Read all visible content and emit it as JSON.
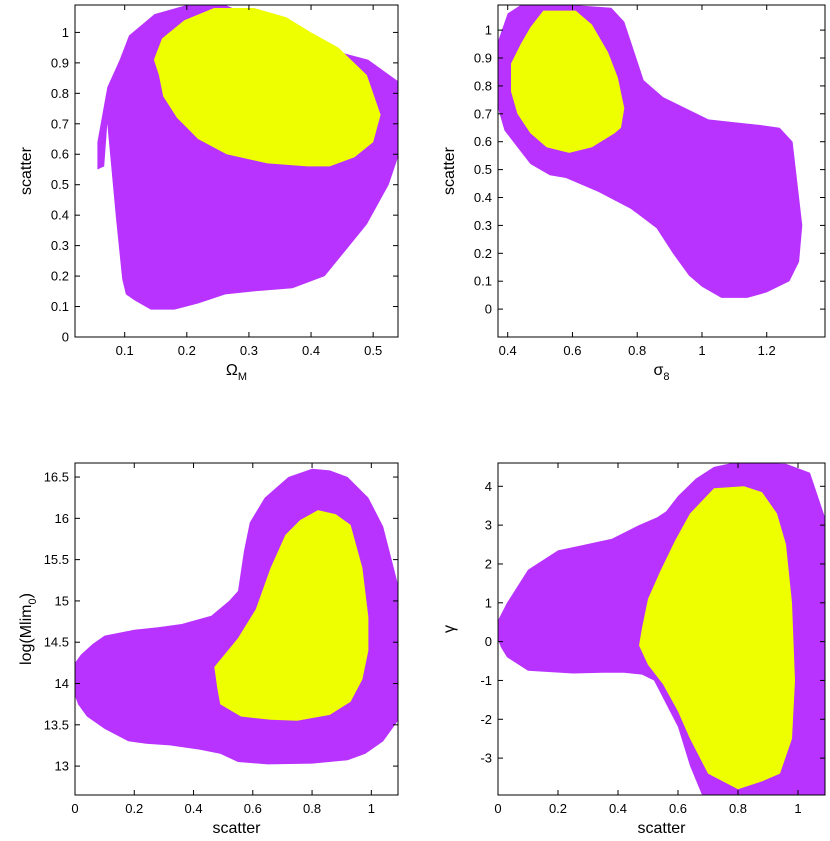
{
  "colors": {
    "outer_contour": "#B833FF",
    "inner_contour": "#EEFF00",
    "axes": "#000000",
    "background": "#FFFFFF"
  },
  "chart_data": [
    {
      "type": "contour",
      "xlabel": "Ω",
      "xlabel_sub": "M",
      "ylabel": "scatter",
      "xlim": [
        0.02,
        0.54
      ],
      "ylim": [
        0,
        1.09
      ],
      "xticks": [
        0.1,
        0.2,
        0.3,
        0.4,
        0.5
      ],
      "xtick_labels": [
        "0.1",
        "0.2",
        "0.3",
        "0.4",
        "0.5"
      ],
      "yticks": [
        0,
        0.1,
        0.2,
        0.3,
        0.4,
        0.5,
        0.6,
        0.7,
        0.8,
        0.9,
        1
      ],
      "ytick_labels": [
        "0",
        "0.1",
        "0.2",
        "0.3",
        "0.4",
        "0.5",
        "0.6",
        "0.7",
        "0.8",
        "0.9",
        "1"
      ],
      "grid": false,
      "series": [
        {
          "level": "outer",
          "x": [
            0.072,
            0.067,
            0.056,
            0.056,
            0.072,
            0.092,
            0.107,
            0.148,
            0.2,
            0.262,
            0.355,
            0.398,
            0.438,
            0.492,
            0.54,
            0.54,
            0.525,
            0.49,
            0.466,
            0.454,
            0.422,
            0.37,
            0.31,
            0.262,
            0.218,
            0.18,
            0.142,
            0.116,
            0.102,
            0.096,
            0.086
          ],
          "y": [
            0.7,
            0.56,
            0.55,
            0.64,
            0.82,
            0.91,
            0.99,
            1.06,
            1.09,
            1.09,
            1.01,
            0.99,
            0.94,
            0.91,
            0.84,
            0.59,
            0.5,
            0.37,
            0.31,
            0.28,
            0.2,
            0.16,
            0.15,
            0.14,
            0.11,
            0.09,
            0.09,
            0.12,
            0.14,
            0.19,
            0.39
          ]
        },
        {
          "level": "inner",
          "x": [
            0.147,
            0.16,
            0.196,
            0.244,
            0.308,
            0.36,
            0.4,
            0.444,
            0.49,
            0.512,
            0.5,
            0.47,
            0.43,
            0.394,
            0.33,
            0.264,
            0.218,
            0.184,
            0.162,
            0.155
          ],
          "y": [
            0.91,
            0.98,
            1.04,
            1.08,
            1.08,
            1.05,
            1.0,
            0.95,
            0.86,
            0.73,
            0.64,
            0.59,
            0.56,
            0.56,
            0.57,
            0.6,
            0.65,
            0.72,
            0.79,
            0.86
          ]
        }
      ]
    },
    {
      "type": "contour",
      "xlabel": "σ",
      "xlabel_sub": "8",
      "ylabel": "scatter",
      "xlim": [
        0.37,
        1.38
      ],
      "ylim": [
        -0.1,
        1.09
      ],
      "xticks": [
        0.4,
        0.6,
        0.8,
        1,
        1.2
      ],
      "xtick_labels": [
        "0.4",
        "0.6",
        "0.8",
        "1",
        "1.2"
      ],
      "yticks": [
        0,
        0.1,
        0.2,
        0.3,
        0.4,
        0.5,
        0.6,
        0.7,
        0.8,
        0.9,
        1
      ],
      "ytick_labels": [
        "0",
        "0.1",
        "0.2",
        "0.3",
        "0.4",
        "0.5",
        "0.6",
        "0.7",
        "0.8",
        "0.9",
        "1"
      ],
      "grid": false,
      "series": [
        {
          "level": "outer",
          "x": [
            0.37,
            0.37,
            0.4,
            0.44,
            0.52,
            0.6,
            0.72,
            0.76,
            0.82,
            0.88,
            1.02,
            1.1,
            1.18,
            1.24,
            1.28,
            1.31,
            1.3,
            1.27,
            1.2,
            1.14,
            1.06,
            1.0,
            0.96,
            0.91,
            0.86,
            0.78,
            0.68,
            0.58,
            0.53,
            0.47,
            0.43,
            0.39
          ],
          "y": [
            0.72,
            0.96,
            1.06,
            1.09,
            1.09,
            1.09,
            1.08,
            1.03,
            0.82,
            0.76,
            0.68,
            0.67,
            0.66,
            0.65,
            0.6,
            0.3,
            0.17,
            0.1,
            0.06,
            0.04,
            0.04,
            0.08,
            0.12,
            0.2,
            0.29,
            0.36,
            0.42,
            0.47,
            0.48,
            0.52,
            0.58,
            0.64
          ]
        },
        {
          "level": "inner",
          "x": [
            0.41,
            0.44,
            0.47,
            0.51,
            0.55,
            0.61,
            0.66,
            0.71,
            0.74,
            0.76,
            0.75,
            0.73,
            0.66,
            0.59,
            0.52,
            0.47,
            0.43,
            0.41
          ],
          "y": [
            0.88,
            0.95,
            1.01,
            1.07,
            1.07,
            1.07,
            1.02,
            0.92,
            0.83,
            0.72,
            0.65,
            0.63,
            0.58,
            0.56,
            0.58,
            0.63,
            0.7,
            0.78
          ]
        }
      ]
    },
    {
      "type": "contour",
      "xlabel": "scatter",
      "ylabel": "log(Mlim",
      "ylabel_sub": "0",
      "ylabel_tail": ")",
      "xlim": [
        0,
        1.09
      ],
      "ylim": [
        12.65,
        16.67
      ],
      "xticks": [
        0,
        0.2,
        0.4,
        0.6,
        0.8,
        1
      ],
      "xtick_labels": [
        "0",
        "0.2",
        "0.4",
        "0.6",
        "0.8",
        "1"
      ],
      "yticks": [
        13,
        13.5,
        14,
        14.5,
        15,
        15.5,
        16,
        16.5
      ],
      "ytick_labels": [
        "13",
        "13.5",
        "14",
        "14.5",
        "15",
        "15.5",
        "16",
        "16.5"
      ],
      "grid": false,
      "series": [
        {
          "level": "outer",
          "x": [
            0.0,
            0.0,
            0.02,
            0.06,
            0.1,
            0.2,
            0.28,
            0.36,
            0.46,
            0.52,
            0.55,
            0.57,
            0.59,
            0.64,
            0.72,
            0.8,
            0.86,
            0.92,
            0.99,
            1.04,
            1.09,
            1.09,
            1.04,
            0.98,
            0.92,
            0.8,
            0.65,
            0.55,
            0.49,
            0.42,
            0.32,
            0.24,
            0.18,
            0.1,
            0.04,
            0.01
          ],
          "y": [
            13.85,
            14.25,
            14.35,
            14.48,
            14.58,
            14.65,
            14.68,
            14.72,
            14.82,
            15.0,
            15.12,
            15.6,
            15.95,
            16.25,
            16.5,
            16.6,
            16.58,
            16.5,
            16.25,
            15.9,
            15.2,
            13.55,
            13.3,
            13.15,
            13.07,
            13.03,
            13.02,
            13.05,
            13.15,
            13.2,
            13.25,
            13.27,
            13.3,
            13.45,
            13.6,
            13.75
          ]
        },
        {
          "level": "inner",
          "x": [
            0.47,
            0.55,
            0.61,
            0.66,
            0.71,
            0.76,
            0.82,
            0.88,
            0.93,
            0.97,
            0.99,
            0.99,
            0.97,
            0.93,
            0.86,
            0.75,
            0.66,
            0.56,
            0.49,
            0.48
          ],
          "y": [
            14.2,
            14.55,
            14.9,
            15.4,
            15.8,
            15.98,
            16.1,
            16.05,
            15.92,
            15.4,
            14.8,
            14.4,
            14.05,
            13.78,
            13.62,
            13.55,
            13.56,
            13.6,
            13.75,
            13.95
          ]
        }
      ]
    },
    {
      "type": "contour",
      "xlabel": "scatter",
      "ylabel": "γ",
      "xlim": [
        0,
        1.09
      ],
      "ylim": [
        -3.95,
        4.6
      ],
      "xticks": [
        0,
        0.2,
        0.4,
        0.6,
        0.8,
        1
      ],
      "xtick_labels": [
        "0",
        "0.2",
        "0.4",
        "0.6",
        "0.8",
        "1"
      ],
      "yticks": [
        -3,
        -2,
        -1,
        0,
        1,
        2,
        3,
        4
      ],
      "ytick_labels": [
        "-3",
        "-2",
        "-1",
        "0",
        "1",
        "2",
        "3",
        "4"
      ],
      "grid": false,
      "series": [
        {
          "level": "outer",
          "x": [
            0.0,
            0.0,
            0.03,
            0.1,
            0.2,
            0.28,
            0.38,
            0.47,
            0.53,
            0.56,
            0.6,
            0.66,
            0.72,
            0.78,
            0.86,
            0.96,
            1.04,
            1.09,
            1.09,
            1.07,
            1.04,
            0.97,
            0.9,
            0.86,
            0.81,
            0.72,
            0.68,
            0.64,
            0.6,
            0.56,
            0.52,
            0.48,
            0.42,
            0.35,
            0.25,
            0.1,
            0.03,
            0.01
          ],
          "y": [
            0.05,
            0.55,
            1.0,
            1.85,
            2.35,
            2.48,
            2.65,
            3.0,
            3.2,
            3.35,
            3.75,
            4.2,
            4.5,
            4.6,
            4.6,
            4.58,
            4.35,
            3.2,
            -3.95,
            -3.95,
            -3.95,
            -3.95,
            -3.95,
            -3.95,
            -3.95,
            -3.95,
            -3.95,
            -3.2,
            -2.2,
            -1.6,
            -1.0,
            -0.85,
            -0.8,
            -0.8,
            -0.82,
            -0.75,
            -0.4,
            -0.15
          ]
        },
        {
          "level": "inner",
          "x": [
            0.48,
            0.5,
            0.54,
            0.59,
            0.64,
            0.72,
            0.82,
            0.88,
            0.93,
            0.96,
            0.98,
            0.99,
            0.98,
            0.94,
            0.88,
            0.8,
            0.7,
            0.64,
            0.6,
            0.55,
            0.5,
            0.47
          ],
          "y": [
            0.35,
            1.1,
            1.8,
            2.6,
            3.3,
            3.95,
            4.0,
            3.85,
            3.3,
            2.5,
            1.0,
            -1.0,
            -2.5,
            -3.4,
            -3.6,
            -3.8,
            -3.4,
            -2.5,
            -1.8,
            -1.1,
            -0.6,
            -0.1
          ]
        }
      ]
    }
  ]
}
